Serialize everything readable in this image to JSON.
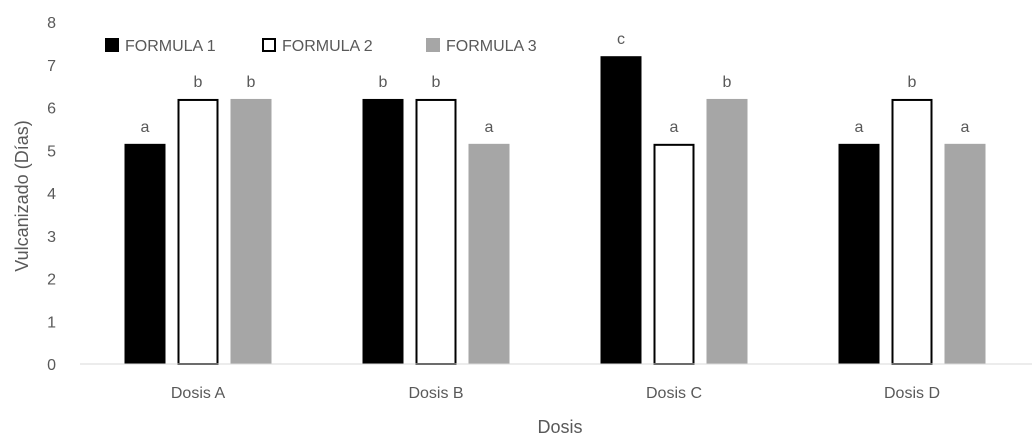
{
  "chart_data": {
    "type": "bar",
    "categories": [
      "Dosis A",
      "Dosis B",
      "Dosis C",
      "Dosis D"
    ],
    "series": [
      {
        "name": "FORMULA 1",
        "values": [
          5.15,
          6.2,
          7.2,
          5.15
        ],
        "labels": [
          "a",
          "b",
          "c",
          "a"
        ],
        "fill": "#000000",
        "stroke": "#000000"
      },
      {
        "name": "FORMULA 2",
        "values": [
          6.2,
          6.2,
          5.15,
          6.2
        ],
        "labels": [
          "b",
          "b",
          "a",
          "b"
        ],
        "fill": "#ffffff",
        "stroke": "#000000"
      },
      {
        "name": "FORMULA 3",
        "values": [
          6.2,
          5.15,
          6.2,
          5.15
        ],
        "labels": [
          "b",
          "a",
          "b",
          "a"
        ],
        "fill": "#a6a6a6",
        "stroke": "#a6a6a6"
      }
    ],
    "xlabel": "Dosis",
    "ylabel": "Vulcanizado (Días)",
    "ylim": [
      0,
      8
    ],
    "yticks": [
      0,
      1,
      2,
      3,
      4,
      5,
      6,
      7,
      8
    ],
    "grid": false,
    "legend": "top-left"
  }
}
